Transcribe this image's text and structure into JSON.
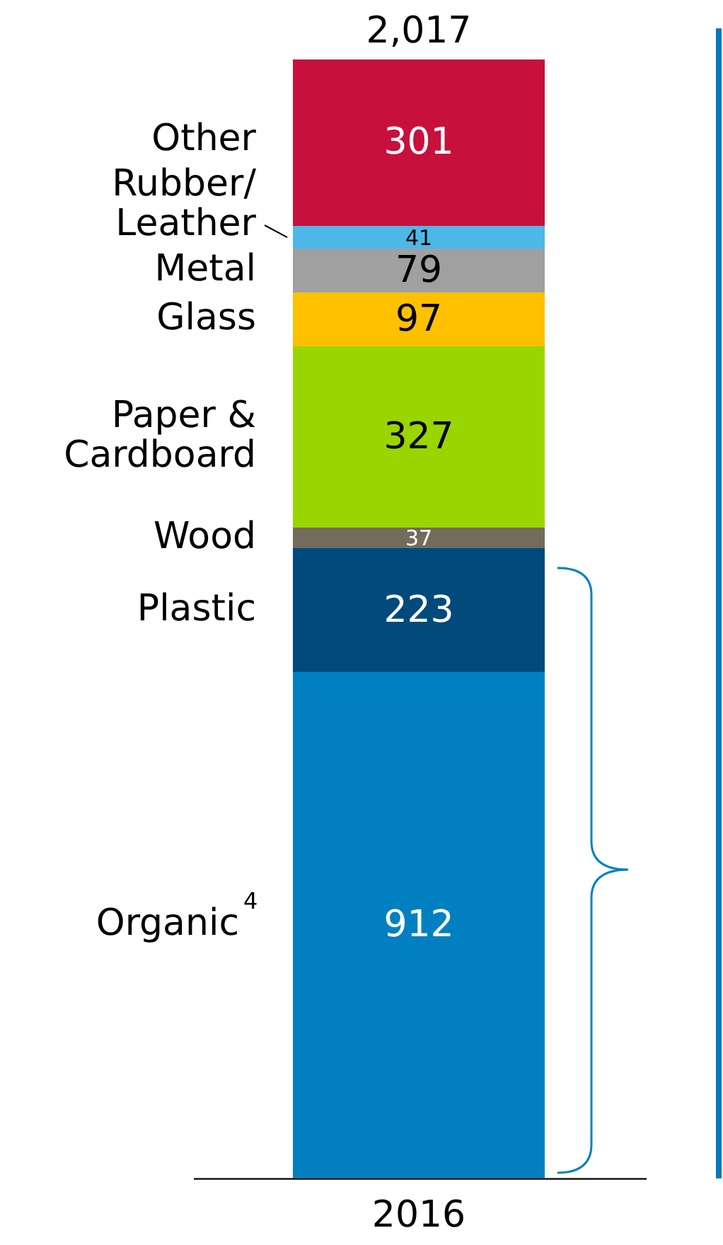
{
  "chart_data": {
    "type": "bar",
    "stacked": true,
    "categories": [
      "2016"
    ],
    "data_labels": true,
    "totals": [
      "2,017"
    ],
    "series": [
      {
        "name": "Organic$^{4}$",
        "color": "#0080c0",
        "values": [
          912
        ]
      },
      {
        "name": "Plastic",
        "color": "#004b7c",
        "values": [
          223
        ]
      },
      {
        "name": "Wood",
        "color": "#736b5e",
        "values": [
          37
        ]
      },
      {
        "name": "Paper & Cardboard",
        "color": "#99d600",
        "values": [
          327
        ]
      },
      {
        "name": "Glass",
        "color": "#ffc000",
        "values": [
          97
        ]
      },
      {
        "name": "Metal",
        "color": "#a0a0a0",
        "values": [
          79
        ]
      },
      {
        "name": "Rubber/Leather",
        "color": "#4db8e8",
        "values": [
          41
        ]
      },
      {
        "name": "Other",
        "color": "#c8103c",
        "values": [
          301
        ]
      }
    ]
  }
}
